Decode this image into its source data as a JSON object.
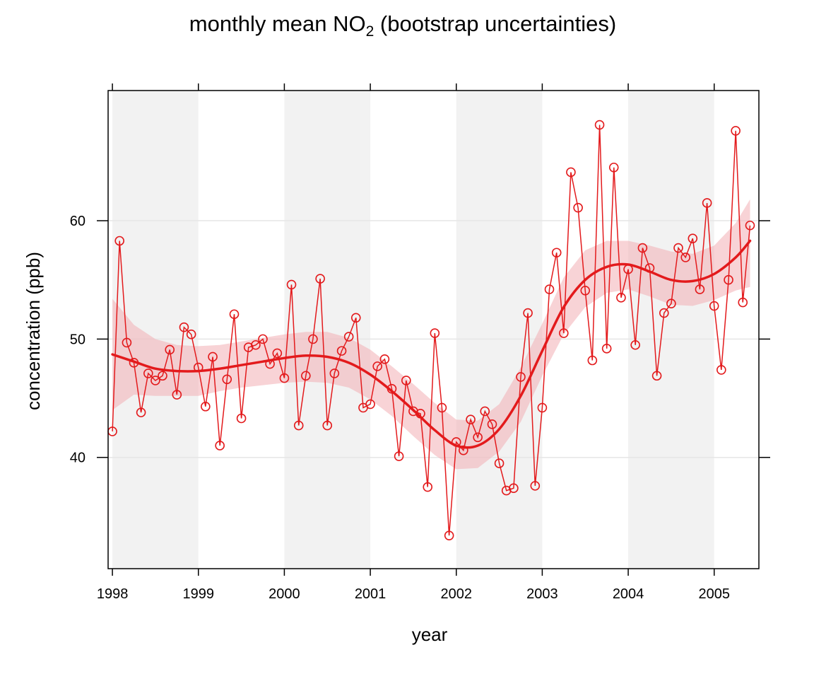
{
  "chart_data": {
    "type": "line",
    "title": {
      "prefix": "monthly mean NO",
      "subscript": "2",
      "suffix": " (bootstrap uncertainties)"
    },
    "xlabel": "year",
    "ylabel": "concentration (ppb)",
    "xlim": [
      1997.95,
      2005.52
    ],
    "ylim": [
      30.6,
      71.0
    ],
    "x_ticks": [
      {
        "value": 1998,
        "label": "1998"
      },
      {
        "value": 1999,
        "label": "1999"
      },
      {
        "value": 2000,
        "label": "2000"
      },
      {
        "value": 2001,
        "label": "2001"
      },
      {
        "value": 2002,
        "label": "2002"
      },
      {
        "value": 2003,
        "label": "2003"
      },
      {
        "value": 2004,
        "label": "2004"
      },
      {
        "value": 2005,
        "label": "2005"
      }
    ],
    "y_ticks": [
      {
        "value": 40,
        "label": "40"
      },
      {
        "value": 50,
        "label": "50"
      },
      {
        "value": 60,
        "label": "60"
      }
    ],
    "grid": {
      "horizontal": true,
      "vertical": false
    },
    "shaded_year_bands": [
      [
        1998,
        1999
      ],
      [
        2000,
        2001
      ],
      [
        2002,
        2003
      ],
      [
        2004,
        2005
      ]
    ],
    "colors": {
      "series": "#e31a1c",
      "band": "#f2aeb4",
      "year_shading": "#f2f2f2",
      "grid": "#e6e6e6"
    },
    "series": [
      {
        "kind": "monthly_means",
        "x": [
          1998.0,
          1998.083,
          1998.167,
          1998.25,
          1998.333,
          1998.417,
          1998.5,
          1998.583,
          1998.667,
          1998.75,
          1998.833,
          1998.917,
          1999.0,
          1999.083,
          1999.167,
          1999.25,
          1999.333,
          1999.417,
          1999.5,
          1999.583,
          1999.667,
          1999.75,
          1999.833,
          1999.917,
          2000.0,
          2000.083,
          2000.167,
          2000.25,
          2000.333,
          2000.417,
          2000.5,
          2000.583,
          2000.667,
          2000.75,
          2000.833,
          2000.917,
          2001.0,
          2001.083,
          2001.167,
          2001.25,
          2001.333,
          2001.417,
          2001.5,
          2001.583,
          2001.667,
          2001.75,
          2001.833,
          2001.917,
          2002.0,
          2002.083,
          2002.167,
          2002.25,
          2002.333,
          2002.417,
          2002.5,
          2002.583,
          2002.667,
          2002.75,
          2002.833,
          2002.917,
          2003.0,
          2003.083,
          2003.167,
          2003.25,
          2003.333,
          2003.417,
          2003.5,
          2003.583,
          2003.667,
          2003.75,
          2003.833,
          2003.917,
          2004.0,
          2004.083,
          2004.167,
          2004.25,
          2004.333,
          2004.417,
          2004.5,
          2004.583,
          2004.667,
          2004.75,
          2004.833,
          2004.917,
          2005.0,
          2005.083,
          2005.167,
          2005.25,
          2005.333,
          2005.417
        ],
        "y": [
          42.2,
          58.3,
          49.7,
          48.0,
          43.8,
          47.1,
          46.5,
          46.9,
          49.1,
          45.3,
          51.0,
          50.4,
          47.6,
          44.3,
          48.5,
          41.0,
          46.6,
          52.1,
          43.3,
          49.3,
          49.5,
          50.0,
          47.9,
          48.8,
          46.7,
          54.6,
          42.7,
          46.9,
          50.0,
          55.1,
          42.7,
          47.1,
          49.0,
          50.2,
          51.8,
          44.2,
          44.5,
          47.7,
          48.3,
          45.8,
          40.1,
          46.5,
          43.9,
          43.7,
          37.5,
          50.5,
          44.2,
          33.4,
          41.3,
          40.6,
          43.2,
          41.7,
          43.9,
          42.8,
          39.5,
          37.2,
          37.4,
          46.8,
          52.2,
          37.6,
          44.2,
          54.2,
          57.3,
          50.5,
          64.1,
          61.1,
          54.1,
          48.2,
          68.1,
          49.2,
          64.5,
          53.5,
          55.9,
          49.5,
          57.7,
          56.0,
          46.9,
          52.2,
          53.0,
          57.7,
          56.9,
          58.5,
          54.2,
          61.5,
          52.8,
          47.4,
          55.0,
          67.6,
          53.1,
          59.6
        ]
      },
      {
        "kind": "smooth_trend",
        "x": [
          1998.0,
          1998.25,
          1998.5,
          1998.75,
          1999.0,
          1999.25,
          1999.5,
          1999.75,
          2000.0,
          2000.25,
          2000.5,
          2000.75,
          2001.0,
          2001.25,
          2001.5,
          2001.75,
          2002.0,
          2002.25,
          2002.5,
          2002.75,
          2003.0,
          2003.25,
          2003.5,
          2003.75,
          2004.0,
          2004.25,
          2004.5,
          2004.75,
          2005.0,
          2005.25,
          2005.417
        ],
        "y": [
          48.7,
          48.1,
          47.5,
          47.3,
          47.3,
          47.5,
          47.8,
          48.1,
          48.4,
          48.6,
          48.5,
          48.0,
          47.0,
          45.6,
          44.0,
          42.3,
          41.0,
          41.0,
          42.4,
          45.2,
          49.0,
          52.7,
          55.0,
          56.1,
          56.3,
          55.7,
          55.0,
          54.9,
          55.5,
          56.9,
          58.3
        ],
        "lower": [
          44.0,
          45.3,
          45.2,
          45.2,
          45.2,
          45.6,
          45.9,
          46.1,
          46.3,
          46.4,
          46.3,
          45.9,
          44.9,
          43.5,
          41.8,
          40.2,
          39.0,
          39.1,
          40.5,
          43.0,
          46.9,
          50.4,
          52.7,
          53.9,
          54.2,
          53.6,
          52.9,
          52.8,
          53.3,
          54.1,
          54.4
        ],
        "upper": [
          53.4,
          51.2,
          50.0,
          49.5,
          49.4,
          49.5,
          49.8,
          50.1,
          50.4,
          50.6,
          50.6,
          50.1,
          49.1,
          47.7,
          46.2,
          44.6,
          43.2,
          43.1,
          44.5,
          47.6,
          51.3,
          55.2,
          57.5,
          58.3,
          58.3,
          57.9,
          57.4,
          57.2,
          57.9,
          59.8,
          61.8
        ]
      }
    ]
  }
}
